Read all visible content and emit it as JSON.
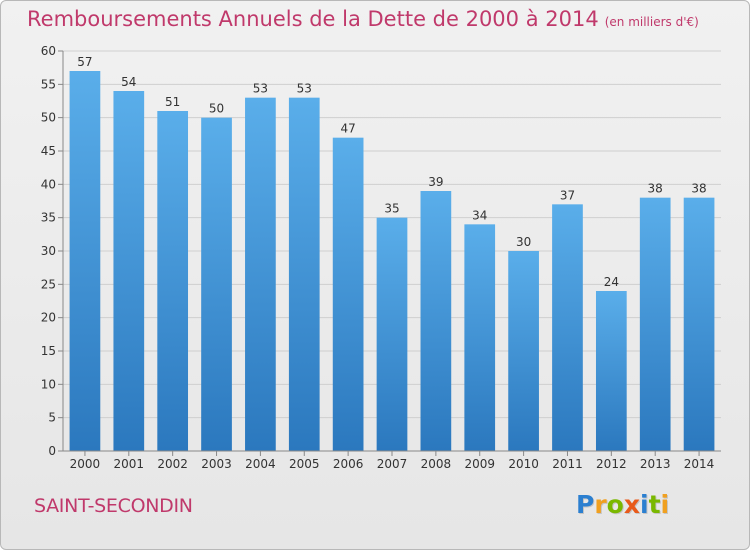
{
  "title": "Remboursements Annuels de la Dette de 2000 à 2014",
  "unit": "(en milliers d'€)",
  "commune": "SAINT-SECONDIN",
  "logo": {
    "text": "Proxiti",
    "letters": [
      {
        "ch": "P",
        "color": "#2b7fd0"
      },
      {
        "ch": "r",
        "color": "#f0a020"
      },
      {
        "ch": "o",
        "color": "#7ab800"
      },
      {
        "ch": "x",
        "color": "#e85a1a"
      },
      {
        "ch": "i",
        "color": "#2b7fd0"
      },
      {
        "ch": "t",
        "color": "#7ab800"
      },
      {
        "ch": "i",
        "color": "#f0a020"
      }
    ]
  },
  "colors": {
    "title": "#c0396b",
    "bar_top": "#5aaeea",
    "bar_bottom": "#2b78be",
    "grid": "#cfcfcf",
    "axis_text": "#333333"
  },
  "chart_data": {
    "type": "bar",
    "categories": [
      "2000",
      "2001",
      "2002",
      "2003",
      "2004",
      "2005",
      "2006",
      "2007",
      "2008",
      "2009",
      "2010",
      "2011",
      "2012",
      "2013",
      "2014"
    ],
    "values": [
      57,
      54,
      51,
      50,
      53,
      53,
      47,
      35,
      39,
      34,
      30,
      37,
      24,
      38,
      38
    ],
    "ylim": [
      0,
      60
    ],
    "yticks": [
      0,
      5,
      10,
      15,
      20,
      25,
      30,
      35,
      40,
      45,
      50,
      55,
      60
    ],
    "grid": true,
    "data_labels": true
  }
}
